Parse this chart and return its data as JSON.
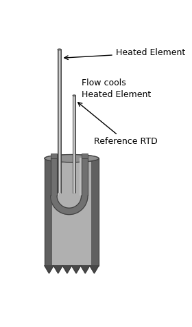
{
  "bg_color": "#ffffff",
  "labels": {
    "heated_element": "Heated Element",
    "flow_cools": "Flow cools\nHeated Element",
    "reference_rtd": "Reference RTD"
  },
  "colors": {
    "body_light": "#b0b0b0",
    "body_mid": "#909090",
    "body_dark": "#606060",
    "body_darker": "#484848",
    "rod_light": "#d0d0d0",
    "rod_mid": "#b0b0b0",
    "rod_dark": "#808080",
    "inner_light": "#c0c0c0",
    "inner_mid": "#a0a0a0",
    "inner_dark": "#707070",
    "rim_light": "#a8a8a8",
    "outline": "#404040",
    "text": "#000000",
    "arrow": "#000000"
  },
  "font_size": 9,
  "figsize": [
    2.8,
    4.75
  ],
  "dpi": 100
}
